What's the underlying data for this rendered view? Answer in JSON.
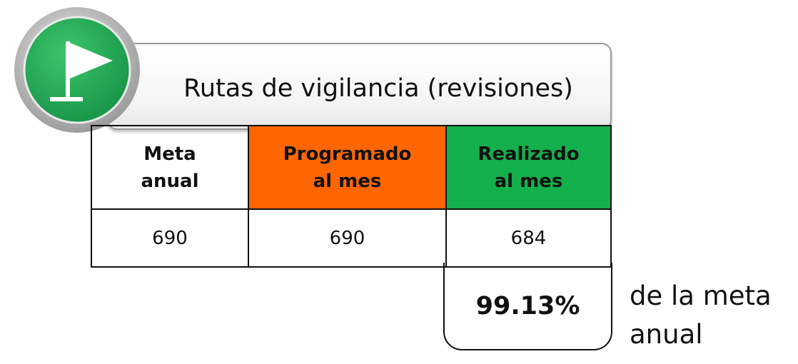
{
  "header": {
    "title": "Rutas de vigilancia (revisiones)"
  },
  "table": {
    "headers": [
      "Meta anual",
      "Programado al mes",
      "Realizado al mes"
    ],
    "rows": [
      [
        "690",
        "690",
        "684"
      ]
    ]
  },
  "result": {
    "value": "99.13%",
    "note": "de la meta anual"
  }
}
